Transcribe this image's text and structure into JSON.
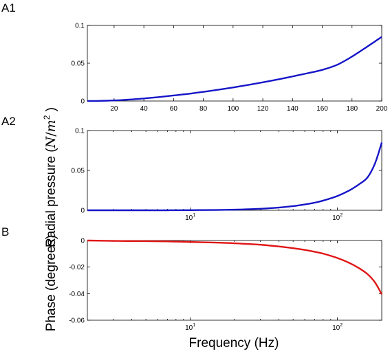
{
  "chart_data": [
    {
      "panel_label": "A1",
      "type": "line",
      "xscale": "linear",
      "xlim": [
        2,
        200
      ],
      "ylim": [
        0,
        0.1
      ],
      "xticks": [
        20,
        40,
        60,
        80,
        100,
        120,
        140,
        160,
        180,
        200
      ],
      "xtick_labels": [
        "20",
        "40",
        "60",
        "80",
        "100",
        "120",
        "140",
        "160",
        "180",
        "200"
      ],
      "yticks": [
        0,
        0.05,
        0.1
      ],
      "ytick_labels": [
        "0",
        "0.05",
        "0.1"
      ],
      "grid": false,
      "series": [
        {
          "color": "#1515c8",
          "x": [
            2,
            10,
            20,
            30,
            40,
            50,
            60,
            70,
            80,
            90,
            100,
            110,
            120,
            130,
            140,
            150,
            160,
            170,
            180,
            190,
            200
          ],
          "y": [
            0.0,
            0.0002,
            0.0008,
            0.0019,
            0.0034,
            0.0052,
            0.0073,
            0.0095,
            0.0121,
            0.0149,
            0.0179,
            0.0212,
            0.0247,
            0.0285,
            0.0325,
            0.0367,
            0.0412,
            0.0479,
            0.0588,
            0.0716,
            0.0849
          ]
        }
      ]
    },
    {
      "panel_label": "A2",
      "type": "line",
      "xscale": "log",
      "xlim": [
        2,
        200
      ],
      "ylim": [
        0,
        0.1
      ],
      "xticks": [
        10,
        100
      ],
      "xtick_labels": [
        {
          "base": "10",
          "exp": "1"
        },
        {
          "base": "10",
          "exp": "2"
        }
      ],
      "yticks": [
        0,
        0.05,
        0.1
      ],
      "ytick_labels": [
        "0",
        "0.05",
        "0.1"
      ],
      "grid": false,
      "series": [
        {
          "color": "#1515c8",
          "x": [
            2,
            3,
            5,
            7,
            10,
            15,
            20,
            30,
            40,
            50,
            60,
            70,
            80,
            100,
            120,
            140,
            160,
            180,
            200
          ],
          "y": [
            0.0,
            0.0,
            0.0,
            0.0,
            0.0002,
            0.0004,
            0.0008,
            0.0019,
            0.0034,
            0.0052,
            0.0073,
            0.0095,
            0.0121,
            0.0179,
            0.0247,
            0.0325,
            0.0412,
            0.0588,
            0.0849
          ]
        }
      ]
    },
    {
      "panel_label": "B",
      "type": "line",
      "xscale": "log",
      "xlim": [
        2,
        200
      ],
      "ylim": [
        -0.06,
        0
      ],
      "xticks": [
        10,
        100
      ],
      "xtick_labels": [
        {
          "base": "10",
          "exp": "1"
        },
        {
          "base": "10",
          "exp": "2"
        }
      ],
      "yticks": [
        0,
        -0.02,
        -0.04,
        -0.06
      ],
      "ytick_labels": [
        "0",
        "-0.02",
        "-0.04",
        "-0.06"
      ],
      "grid": false,
      "series": [
        {
          "color": "#e01515",
          "x": [
            2,
            3,
            5,
            7,
            10,
            15,
            20,
            30,
            40,
            50,
            60,
            70,
            80,
            100,
            120,
            140,
            160,
            180,
            200
          ],
          "y": [
            0.0,
            -0.0003,
            -0.0005,
            -0.0007,
            -0.0011,
            -0.0016,
            -0.0021,
            -0.0032,
            -0.0045,
            -0.0058,
            -0.0071,
            -0.0085,
            -0.0099,
            -0.0132,
            -0.0168,
            -0.0208,
            -0.0253,
            -0.0316,
            -0.0405
          ]
        }
      ]
    }
  ],
  "ylabel_top": {
    "text": "Radial pressure (",
    "math_var": "N",
    "slash": "/",
    "math_var2": "m",
    "sup": "2",
    "close": " )"
  },
  "ylabel_bottom": "Phase (degrees)",
  "xlabel": "Frequency (Hz)"
}
